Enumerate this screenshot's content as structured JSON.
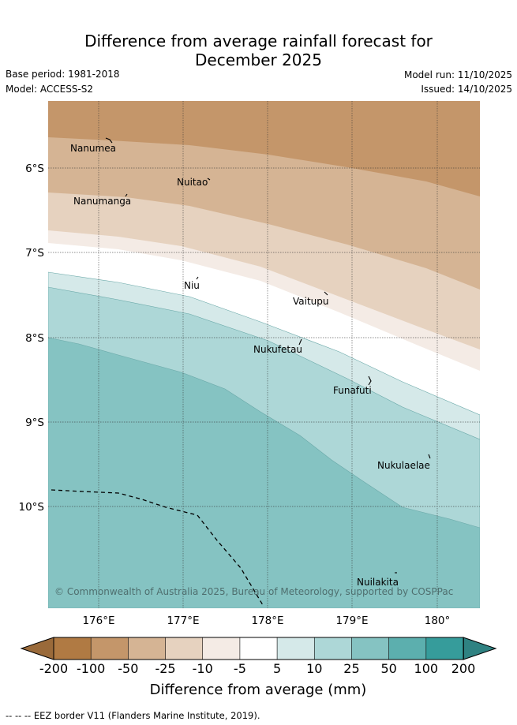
{
  "title_line1": "Difference from average rainfall forecast for",
  "title_line2": "December 2025",
  "base_period": "Base period: 1981-2018",
  "model": "Model: ACCESS-S2",
  "model_run": "Model run: 11/10/2025",
  "issued": "Issued: 14/10/2025",
  "map": {
    "lon_range": [
      175.5,
      180.5
    ],
    "lat_range": [
      -5.35,
      -11.3
    ],
    "lat_ticks": [
      "6°S",
      "7°S",
      "8°S",
      "9°S",
      "10°S"
    ],
    "lon_ticks": [
      "176°E",
      "177°E",
      "178°E",
      "179°E",
      "180°"
    ],
    "places": [
      "Nanumea",
      "Nuitao",
      "Nanumanga",
      "Niu",
      "Vaitupu",
      "Nukufetau",
      "Funafuti",
      "Nukulaelae",
      "Nuilakita"
    ],
    "copyright": "© Commonwealth of Australia 2025, Bureau of Meteorology, supported by COSPPac"
  },
  "colorbar": {
    "ticks": [
      "-200",
      "-100",
      "-50",
      "-25",
      "-10",
      "-5",
      "5",
      "10",
      "25",
      "50",
      "100",
      "200"
    ],
    "colors": [
      "#b07a43",
      "#c4966a",
      "#d5b494",
      "#e6d2bf",
      "#f4ebe5",
      "#ffffff",
      "#d5e9e9",
      "#add7d7",
      "#85c3c2",
      "#5cafae",
      "#369c9b"
    ],
    "low_color": "#9a6a3a",
    "high_color": "#2f8282",
    "title": "Difference from average (mm)"
  },
  "footer": "--  --  -- EEZ border V11 (Flanders Marine Institute, 2019)."
}
